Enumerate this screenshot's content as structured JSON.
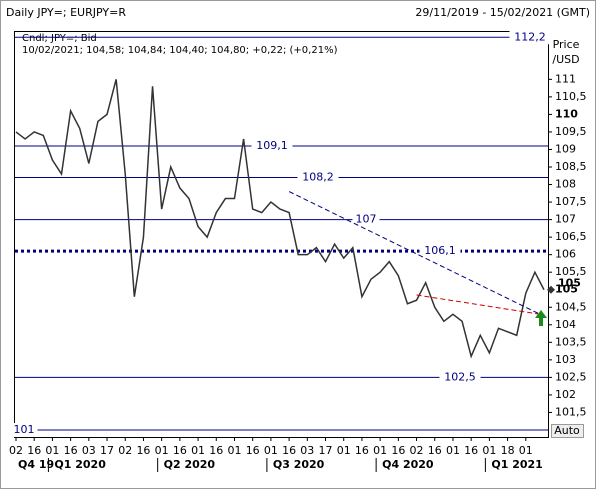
{
  "chart_data": {
    "type": "line",
    "title": "Daily JPY=; EURJPY=R",
    "date_range": "29/11/2019 - 15/02/2021 (GMT)",
    "legend_line1": "Cndl; JPY=; Bid",
    "legend_line2": "10/02/2021; 104,58; 104,84; 104,40; 104,80; +0,22; (+0,21%)",
    "y_axis_label": [
      "Price",
      "/USD"
    ],
    "button": "Auto",
    "quarters": [
      "Q4 19",
      "Q1 2020",
      "Q2 2020",
      "Q3 2020",
      "Q4 2020",
      "Q1 2021"
    ],
    "categories": [
      "02",
      null,
      "16",
      null,
      "01",
      null,
      "16",
      null,
      "03",
      null,
      "17",
      null,
      "02",
      null,
      "16",
      null,
      "01",
      null,
      "16",
      null,
      "01",
      null,
      "16",
      null,
      "01",
      null,
      "16",
      null,
      "01",
      null,
      "16",
      null,
      "03",
      null,
      "17",
      null,
      "01",
      null,
      "16",
      null,
      "01",
      null,
      "16",
      null,
      "02",
      null,
      "16",
      null,
      "01",
      null,
      "16",
      null,
      "01",
      null,
      "18",
      null,
      "01",
      null,
      null
    ],
    "series": [
      {
        "name": "JPY=",
        "color": "#333333",
        "values": [
          109.5,
          109.3,
          109.5,
          109.4,
          108.7,
          108.3,
          110.1,
          109.6,
          108.6,
          109.8,
          110.0,
          111.0,
          108.3,
          104.8,
          106.5,
          110.8,
          107.3,
          108.5,
          107.9,
          107.6,
          106.8,
          106.5,
          107.2,
          107.6,
          107.6,
          109.3,
          107.3,
          107.2,
          107.5,
          107.3,
          107.2,
          106.0,
          106.0,
          106.2,
          105.8,
          106.3,
          105.9,
          106.2,
          104.8,
          105.3,
          105.5,
          105.8,
          105.4,
          104.6,
          104.7,
          105.2,
          104.5,
          104.1,
          104.3,
          104.1,
          103.1,
          103.7,
          103.2,
          103.9,
          103.8,
          103.7,
          104.9,
          105.5,
          105.0
        ]
      }
    ],
    "ylim": [
      100.8,
      112.35
    ],
    "yticks": [
      {
        "value": 101.5,
        "label": "101,5"
      },
      102,
      {
        "value": 102.5,
        "label": "102,5"
      },
      103,
      {
        "value": 103.5,
        "label": "103,5"
      },
      104,
      {
        "value": 104.5,
        "label": "104,5"
      },
      105,
      {
        "value": 105.5,
        "label": "105,5"
      },
      106,
      {
        "value": 106.5,
        "label": "106,5"
      },
      107,
      {
        "value": 107.5,
        "label": "107,5"
      },
      108,
      {
        "value": 108.5,
        "label": "108,5"
      },
      109,
      {
        "value": 109.5,
        "label": "109,5"
      },
      110,
      {
        "value": 110.5,
        "label": "110,5"
      },
      111
    ],
    "levels": [
      {
        "value": 112.2,
        "label": "112,2"
      },
      {
        "value": 109.1,
        "label": "109,1"
      },
      {
        "value": 108.2,
        "label": "108,2"
      },
      {
        "value": 107,
        "label": "107"
      },
      {
        "value": 106.1,
        "label": "106,1",
        "style": "dotted"
      },
      {
        "value": 102.5,
        "label": "102,5"
      },
      {
        "value": 101,
        "label": "101"
      }
    ],
    "last_price": 105,
    "trendlines": [
      {
        "color": "#000080",
        "values": [
          107.8,
          104.3
        ]
      },
      {
        "color": "#cc0000",
        "values": [
          104.85,
          104.3
        ]
      }
    ]
  }
}
